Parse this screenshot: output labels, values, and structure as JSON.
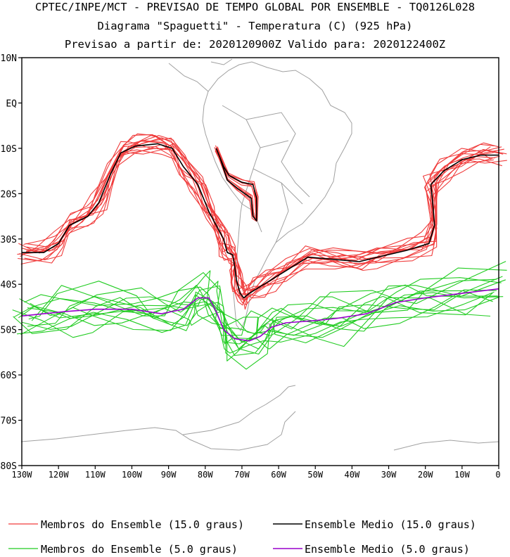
{
  "header": {
    "line1": "CPTEC/INPE/MCT - PREVISAO DE TEMPO GLOBAL POR ENSEMBLE - TQ0126L028",
    "line2": "Diagrama \"Spaguetti\" - Temperatura (C) (925 hPa)",
    "line3": "Previsao a partir de: 2020120900Z  Valido para: 2020122400Z"
  },
  "axes": {
    "lat_labels": [
      "10N",
      "EQ",
      "10S",
      "20S",
      "30S",
      "40S",
      "50S",
      "60S",
      "70S",
      "80S"
    ],
    "lat_values": [
      10,
      0,
      -10,
      -20,
      -30,
      -40,
      -50,
      -60,
      -70,
      -80
    ],
    "lon_labels": [
      "130W",
      "120W",
      "110W",
      "100W",
      "90W",
      "80W",
      "70W",
      "60W",
      "50W",
      "40W",
      "30W",
      "20W",
      "10W",
      "0"
    ],
    "lon_values": [
      -130,
      -120,
      -110,
      -100,
      -90,
      -80,
      -70,
      -60,
      -50,
      -40,
      -30,
      -20,
      -10,
      0
    ],
    "lon_range": [
      -130,
      0
    ],
    "lat_range": [
      -80,
      10
    ]
  },
  "legend": {
    "red_members": "Membros do Ensemble (15.0 graus)",
    "black_mean": "Ensemble Medio (15.0 graus)",
    "green_members": "Membros do Ensemble (5.0 graus)",
    "purple_mean": "Ensemble Medio (5.0 graus)"
  },
  "colors": {
    "members_15": "#f03c3c",
    "mean_15": "#000000",
    "members_5": "#22cc22",
    "mean_5": "#9900cc",
    "coast": "#a0a0a0"
  },
  "contours": {
    "mean_15": [
      [
        -130,
        -33
      ],
      [
        -124,
        -33
      ],
      [
        -120,
        -31
      ],
      [
        -117,
        -27
      ],
      [
        -112,
        -25
      ],
      [
        -109,
        -22
      ],
      [
        -106,
        -16
      ],
      [
        -103,
        -11
      ],
      [
        -99,
        -9.5
      ],
      [
        -93,
        -9
      ],
      [
        -89,
        -10
      ],
      [
        -86,
        -14
      ],
      [
        -82,
        -18
      ],
      [
        -79,
        -24
      ],
      [
        -77,
        -27
      ],
      [
        -75,
        -30
      ],
      [
        -74,
        -33
      ],
      [
        -72.5,
        -33.5
      ],
      [
        -72,
        -36
      ],
      [
        -71.5,
        -39
      ],
      [
        -70.5,
        -42
      ],
      [
        -69.5,
        -43
      ],
      [
        -68,
        -42
      ],
      [
        -66,
        -41
      ],
      [
        -62,
        -39
      ],
      [
        -58,
        -37
      ],
      [
        -52,
        -34
      ],
      [
        -45,
        -34.5
      ],
      [
        -38,
        -35
      ],
      [
        -33,
        -34
      ],
      [
        -25,
        -32.5
      ],
      [
        -19,
        -31
      ],
      [
        -17.5,
        -27
      ],
      [
        -18,
        -22
      ],
      [
        -18.5,
        -18
      ],
      [
        -15,
        -15
      ],
      [
        -10,
        -12.5
      ],
      [
        -5,
        -11.5
      ],
      [
        0,
        -11.5
      ]
    ],
    "mean_5": [
      [
        -130,
        -47
      ],
      [
        -124,
        -46.5
      ],
      [
        -118,
        -46
      ],
      [
        -110,
        -45.5
      ],
      [
        -100,
        -45.5
      ],
      [
        -92,
        -46.5
      ],
      [
        -86,
        -45.5
      ],
      [
        -82,
        -43
      ],
      [
        -79,
        -43
      ],
      [
        -77,
        -46
      ],
      [
        -75,
        -50
      ],
      [
        -72,
        -52
      ],
      [
        -68,
        -52.5
      ],
      [
        -65,
        -51.5
      ],
      [
        -62,
        -49.5
      ],
      [
        -58,
        -48.5
      ],
      [
        -50,
        -48
      ],
      [
        -44,
        -47.5
      ],
      [
        -36,
        -46.5
      ],
      [
        -28,
        -44
      ],
      [
        -20,
        -43
      ],
      [
        -10,
        -42
      ],
      [
        0,
        -41
      ]
    ],
    "andes_loop": [
      [
        -77,
        -10
      ],
      [
        -75,
        -14
      ],
      [
        -73.5,
        -16
      ],
      [
        -70,
        -17.5
      ],
      [
        -67,
        -18
      ],
      [
        -66,
        -21
      ],
      [
        -66,
        -26
      ],
      [
        -67,
        -25
      ],
      [
        -67.5,
        -21
      ],
      [
        -71,
        -19
      ],
      [
        -74,
        -17
      ],
      [
        -76,
        -12
      ],
      [
        -77,
        -10
      ]
    ]
  }
}
